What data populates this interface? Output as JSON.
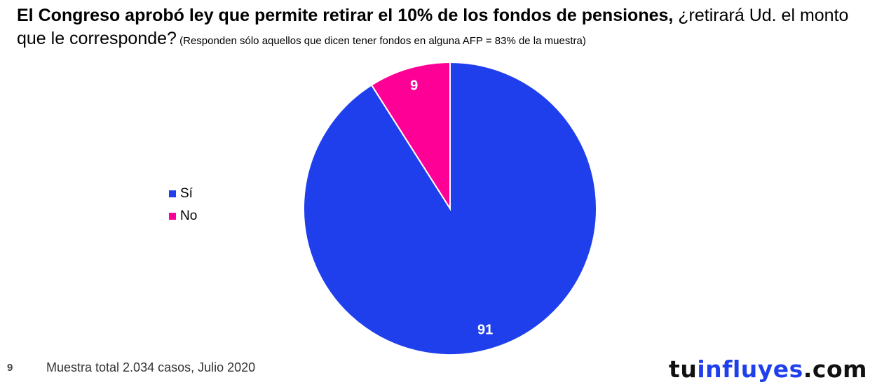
{
  "title": {
    "bold": "El Congreso aprobó ley que permite retirar el 10% de los fondos de pensiones,",
    "regular": " ¿retirará Ud. el monto que le corresponde?",
    "note": " (Responden sólo aquellos que dicen tener fondos en alguna AFP = 83% de la muestra)"
  },
  "chart_data": {
    "type": "pie",
    "categories": [
      "Sí",
      "No"
    ],
    "values": [
      91,
      9
    ],
    "colors": [
      "#1f3fec",
      "#ff0096"
    ],
    "data_labels": [
      "91",
      "9"
    ],
    "legend_position": "left"
  },
  "footer": {
    "page_number": "9",
    "note": "Muestra total 2.034 casos, Julio 2020"
  },
  "brand": {
    "part1": "tu",
    "part2": "influyes",
    "part3": ".com"
  }
}
